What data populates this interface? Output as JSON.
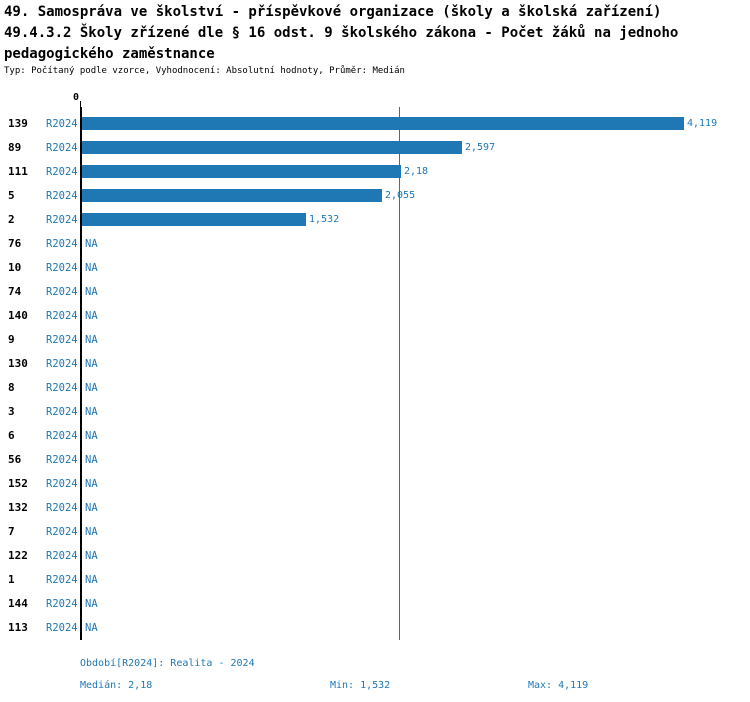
{
  "chart_data": {
    "type": "bar",
    "orientation": "horizontal",
    "title": "49. Samospráva ve školství - příspěvkové organizace (školy a školská zařízení)",
    "subtitle": "49.4.3.2 Školy zřízené dle § 16 odst. 9 školského zákona - Počet žáků na jednoho pedagogického zaměstnance",
    "meta": "Typ: Počítaný podle vzorce, Vyhodnocení: Absolutní hodnoty, Průměr: Medián",
    "x_zero_label": "0",
    "xlim": [
      0,
      4.5
    ],
    "median_line": 2.18,
    "stats": {
      "median": 2.18,
      "min": 1.532,
      "max": 4.119
    },
    "series_name": "R2024",
    "rows": [
      {
        "category": "139",
        "period": "R2024",
        "value": 4.119,
        "value_label": "4,119"
      },
      {
        "category": "89",
        "period": "R2024",
        "value": 2.597,
        "value_label": "2,597"
      },
      {
        "category": "111",
        "period": "R2024",
        "value": 2.18,
        "value_label": "2,18"
      },
      {
        "category": "5",
        "period": "R2024",
        "value": 2.055,
        "value_label": "2,055"
      },
      {
        "category": "2",
        "period": "R2024",
        "value": 1.532,
        "value_label": "1,532"
      },
      {
        "category": "76",
        "period": "R2024",
        "value": null,
        "value_label": "NA"
      },
      {
        "category": "10",
        "period": "R2024",
        "value": null,
        "value_label": "NA"
      },
      {
        "category": "74",
        "period": "R2024",
        "value": null,
        "value_label": "NA"
      },
      {
        "category": "140",
        "period": "R2024",
        "value": null,
        "value_label": "NA"
      },
      {
        "category": "9",
        "period": "R2024",
        "value": null,
        "value_label": "NA"
      },
      {
        "category": "130",
        "period": "R2024",
        "value": null,
        "value_label": "NA"
      },
      {
        "category": "8",
        "period": "R2024",
        "value": null,
        "value_label": "NA"
      },
      {
        "category": "3",
        "period": "R2024",
        "value": null,
        "value_label": "NA"
      },
      {
        "category": "6",
        "period": "R2024",
        "value": null,
        "value_label": "NA"
      },
      {
        "category": "56",
        "period": "R2024",
        "value": null,
        "value_label": "NA"
      },
      {
        "category": "152",
        "period": "R2024",
        "value": null,
        "value_label": "NA"
      },
      {
        "category": "132",
        "period": "R2024",
        "value": null,
        "value_label": "NA"
      },
      {
        "category": "7",
        "period": "R2024",
        "value": null,
        "value_label": "NA"
      },
      {
        "category": "122",
        "period": "R2024",
        "value": null,
        "value_label": "NA"
      },
      {
        "category": "1",
        "period": "R2024",
        "value": null,
        "value_label": "NA"
      },
      {
        "category": "144",
        "period": "R2024",
        "value": null,
        "value_label": "NA"
      },
      {
        "category": "113",
        "period": "R2024",
        "value": null,
        "value_label": "NA"
      }
    ],
    "colors": {
      "bar": "#1f77b4",
      "accent_text": "#1f77b4",
      "axis": "#000000"
    }
  },
  "footer": {
    "period_label": "Období[R2024]: Realita - 2024",
    "median_label": "Medián: 2,18",
    "min_label": "Min: 1,532",
    "max_label": "Max: 4,119"
  }
}
